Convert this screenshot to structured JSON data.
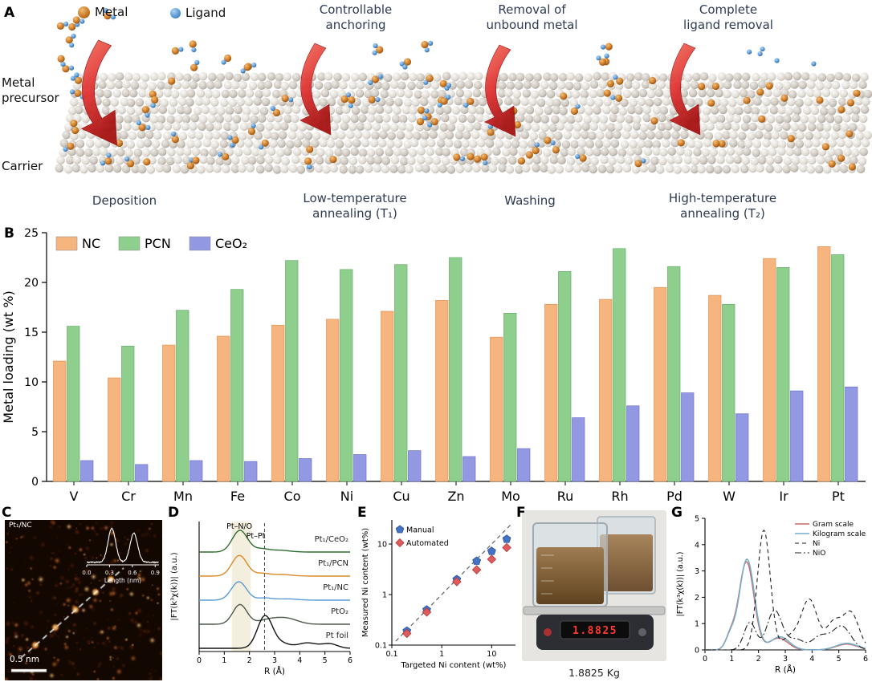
{
  "figure": {
    "panel_labels": {
      "a": "A",
      "b": "B",
      "c": "C",
      "d": "D",
      "e": "E",
      "f": "F",
      "g": "G"
    }
  },
  "panelA": {
    "legend": [
      {
        "label": "Metal",
        "color": "#c87a28"
      },
      {
        "label": "Ligand",
        "color": "#5b9bd5"
      }
    ],
    "annotations": [
      "Controllable\nanchoring",
      "Removal of\nunbound metal",
      "Complete\nligand removal"
    ],
    "left_labels": {
      "precursor": "Metal\nprecursor",
      "carrier": "Carrier"
    },
    "steps": [
      "Deposition",
      "Low-temperature\nannealing (T₁)",
      "Washing",
      "High-temperature\nannealing (T₂)"
    ]
  },
  "panelC": {
    "sample_label": "Pt₁/NC",
    "scale_bar": "0.5 nm",
    "inset_xlabel": "Length (nm)",
    "inset_ticks": [
      "0.0",
      "0.3",
      "0.6",
      "0.9"
    ],
    "inset_peaks": [
      [
        0.33,
        42,
        0.05
      ],
      [
        0.62,
        36,
        0.05
      ]
    ]
  },
  "panelF": {
    "display": "1.8825",
    "caption": "1.8825 Kg"
  },
  "chart_data": [
    {
      "id": "metal-loading",
      "type": "bar",
      "title": "",
      "xlabel": "",
      "ylabel": "Metal loading (wt %)",
      "ylim": [
        0,
        25
      ],
      "yticks": [
        0,
        5,
        10,
        15,
        20,
        25
      ],
      "legend_position": "top-left",
      "categories": [
        "V",
        "Cr",
        "Mn",
        "Fe",
        "Co",
        "Ni",
        "Cu",
        "Zn",
        "Mo",
        "Ru",
        "Rh",
        "Pd",
        "W",
        "Ir",
        "Pt"
      ],
      "series": [
        {
          "name": "NC",
          "color": "#f6b47f",
          "stroke": "#dd9354",
          "values": [
            12.1,
            10.4,
            13.7,
            14.6,
            15.7,
            16.3,
            17.1,
            18.2,
            14.5,
            17.8,
            18.3,
            19.5,
            18.7,
            22.4,
            23.6
          ]
        },
        {
          "name": "PCN",
          "color": "#8ecf8e",
          "stroke": "#64ad66",
          "values": [
            15.6,
            13.6,
            17.2,
            19.3,
            22.2,
            21.3,
            21.8,
            22.5,
            16.9,
            21.1,
            23.4,
            21.6,
            17.8,
            21.5,
            22.8
          ]
        },
        {
          "name": "CeO₂",
          "color": "#9398e3",
          "stroke": "#6f74c9",
          "values": [
            2.1,
            1.7,
            2.1,
            2.0,
            2.3,
            2.7,
            3.1,
            2.5,
            3.3,
            6.4,
            7.6,
            8.9,
            6.8,
            9.1,
            9.5
          ]
        }
      ]
    },
    {
      "id": "pt-exafs",
      "type": "line",
      "xlabel": "R (Å)",
      "ylabel": "|FT(k³χ(k))| (a.u.)",
      "xlim": [
        0,
        6
      ],
      "xticks": [
        0,
        1,
        2,
        3,
        4,
        5,
        6
      ],
      "annotations": [
        "Pt–N/O",
        "Pt–Pt"
      ],
      "dashed_line_x": 2.6,
      "band": [
        1.3,
        2.05
      ],
      "series": [
        {
          "name": "Pt₁/CeO₂",
          "color": "#2f6b30",
          "offset": 4,
          "peaks": [
            [
              1.62,
              1.0,
              0.3
            ],
            [
              2.45,
              0.14,
              0.3
            ],
            [
              3.2,
              0.08,
              0.4
            ]
          ]
        },
        {
          "name": "Pt₁/PCN",
          "color": "#d98a2b",
          "offset": 3,
          "peaks": [
            [
              1.6,
              0.95,
              0.3
            ],
            [
              2.5,
              0.12,
              0.3
            ],
            [
              3.3,
              0.07,
              0.4
            ]
          ]
        },
        {
          "name": "Pt₁/NC",
          "color": "#5b9bd5",
          "offset": 2,
          "peaks": [
            [
              1.58,
              0.85,
              0.3
            ],
            [
              2.6,
              0.1,
              0.3
            ],
            [
              3.5,
              0.06,
              0.4
            ]
          ]
        },
        {
          "name": "PtO₂",
          "color": "#4a5a4a",
          "offset": 1,
          "peaks": [
            [
              1.62,
              0.9,
              0.28
            ],
            [
              2.9,
              0.25,
              0.5
            ],
            [
              3.6,
              0.18,
              0.4
            ]
          ]
        },
        {
          "name": "Pt foil",
          "color": "#111111",
          "offset": 0,
          "peaks": [
            [
              2.62,
              1.5,
              0.3
            ],
            [
              3.3,
              0.2,
              0.3
            ],
            [
              4.3,
              0.25,
              0.4
            ],
            [
              5.2,
              0.2,
              0.3
            ]
          ]
        }
      ]
    },
    {
      "id": "ni-content",
      "type": "scatter",
      "xlabel": "Targeted Ni content (wt%)",
      "ylabel": "Measured Ni content (wt%)",
      "xscale": "log",
      "yscale": "log",
      "xlim": [
        0.1,
        30
      ],
      "ylim": [
        0.1,
        30
      ],
      "ticks": [
        0.1,
        1,
        10
      ],
      "reference_line": {
        "style": "dashed",
        "from": [
          0.12,
          0.12
        ],
        "to": [
          26,
          26
        ]
      },
      "series": [
        {
          "name": "Manual",
          "color": "#4472c4",
          "marker": "pentagon",
          "points": [
            [
              0.2,
              0.19
            ],
            [
              0.5,
              0.5
            ],
            [
              2,
              2.0
            ],
            [
              5,
              4.6
            ],
            [
              10,
              7.2
            ],
            [
              20,
              12.5
            ]
          ]
        },
        {
          "name": "Automated",
          "color": "#e05c5c",
          "marker": "diamond",
          "points": [
            [
              0.2,
              0.17
            ],
            [
              0.5,
              0.45
            ],
            [
              2,
              1.8
            ],
            [
              5,
              3.1
            ],
            [
              10,
              5.0
            ],
            [
              20,
              8.5
            ]
          ]
        }
      ]
    },
    {
      "id": "ni-exafs",
      "type": "line",
      "xlabel": "R (Å)",
      "ylabel": "|FT(k³χ(k))| (a.u.)",
      "xlim": [
        0,
        6
      ],
      "ylim": [
        0,
        5
      ],
      "xticks": [
        0,
        1,
        2,
        3,
        4,
        5,
        6
      ],
      "yticks": [
        0,
        1,
        2,
        3,
        4,
        5
      ],
      "legend_position": "top-right",
      "series": [
        {
          "name": "Gram scale",
          "color": "#c96a6a",
          "dash": "solid",
          "peaks": [
            [
              1.55,
              3.35,
              0.28
            ],
            [
              0.95,
              0.5,
              0.18
            ],
            [
              2.75,
              0.45,
              0.35
            ],
            [
              5.3,
              0.22,
              0.4
            ]
          ]
        },
        {
          "name": "Kilogram scale",
          "color": "#74aecb",
          "dash": "solid",
          "peaks": [
            [
              1.57,
              3.45,
              0.28
            ],
            [
              0.95,
              0.5,
              0.18
            ],
            [
              2.8,
              0.5,
              0.35
            ],
            [
              5.3,
              0.25,
              0.4
            ]
          ]
        },
        {
          "name": "Ni",
          "color": "#222222",
          "dash": "dashed",
          "peaks": [
            [
              2.2,
              4.55,
              0.24
            ],
            [
              3.2,
              0.5,
              0.3
            ],
            [
              3.9,
              1.9,
              0.3
            ],
            [
              4.8,
              1.0,
              0.28
            ],
            [
              5.45,
              1.4,
              0.3
            ]
          ]
        },
        {
          "name": "NiO",
          "color": "#222222",
          "dash": "dashdot",
          "peaks": [
            [
              1.68,
              1.05,
              0.22
            ],
            [
              2.6,
              1.5,
              0.28
            ],
            [
              3.4,
              0.4,
              0.3
            ],
            [
              4.3,
              0.5,
              0.3
            ],
            [
              5.1,
              0.9,
              0.35
            ]
          ]
        }
      ]
    }
  ]
}
